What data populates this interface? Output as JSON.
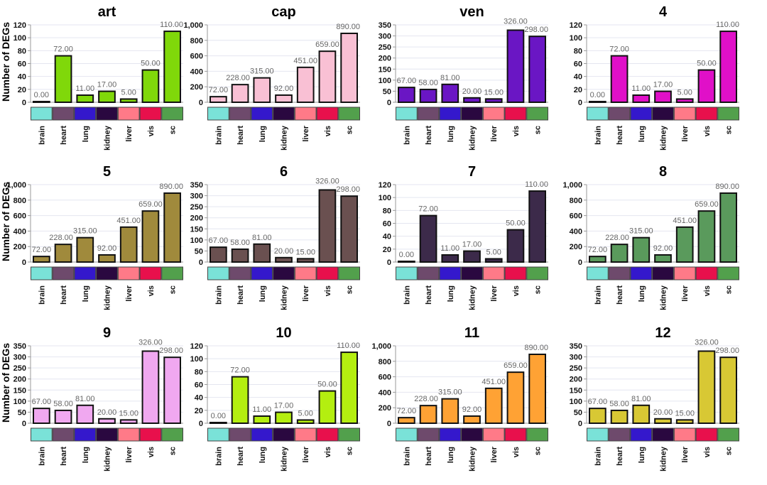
{
  "chart_data": {
    "type": "bar",
    "ylabel": "Number of DEGs",
    "categories": [
      "brain",
      "heart",
      "lung",
      "kidney",
      "liver",
      "vis",
      "sc"
    ],
    "category_colors": [
      "#7ae2d8",
      "#6e4a6c",
      "#3418cc",
      "#2a0840",
      "#ff7a88",
      "#e8104c",
      "#52a04c"
    ],
    "grid": true,
    "panels": [
      {
        "title": "art",
        "color": "#80d80a",
        "values": [
          0,
          72,
          11,
          17,
          5,
          50,
          110
        ],
        "ylim": [
          0,
          120
        ],
        "yticks": [
          "0",
          "20",
          "40",
          "60",
          "80",
          "100",
          "120"
        ],
        "tick_values": [
          0,
          20,
          40,
          60,
          80,
          100,
          120
        ],
        "value_labels": [
          "0.00",
          "72.00",
          "11.00",
          "17.00",
          "5.00",
          "50.00",
          "110.00"
        ]
      },
      {
        "title": "cap",
        "color": "#f9c0d4",
        "values": [
          72,
          228,
          315,
          92,
          451,
          659,
          890
        ],
        "ylim": [
          0,
          1000
        ],
        "yticks": [
          "0",
          "200",
          "400",
          "600",
          "800",
          "1,000"
        ],
        "tick_values": [
          0,
          200,
          400,
          600,
          800,
          1000
        ],
        "value_labels": [
          "72.00",
          "228.00",
          "315.00",
          "92.00",
          "451.00",
          "659.00",
          "890.00"
        ]
      },
      {
        "title": "ven",
        "color": "#6a16c4",
        "values": [
          67,
          58,
          81,
          20,
          15,
          326,
          298
        ],
        "ylim": [
          0,
          350
        ],
        "yticks": [
          "0",
          "50",
          "100",
          "150",
          "200",
          "250",
          "300",
          "350"
        ],
        "tick_values": [
          0,
          50,
          100,
          150,
          200,
          250,
          300,
          350
        ],
        "value_labels": [
          "67.00",
          "58.00",
          "81.00",
          "20.00",
          "15.00",
          "326.00",
          "298.00"
        ]
      },
      {
        "title": "4",
        "color": "#e010c8",
        "values": [
          0,
          72,
          11,
          17,
          5,
          50,
          110
        ],
        "ylim": [
          0,
          120
        ],
        "yticks": [
          "0",
          "20",
          "40",
          "60",
          "80",
          "100",
          "120"
        ],
        "tick_values": [
          0,
          20,
          40,
          60,
          80,
          100,
          120
        ],
        "value_labels": [
          "0.00",
          "72.00",
          "11.00",
          "17.00",
          "5.00",
          "50.00",
          "110.00"
        ]
      },
      {
        "title": "5",
        "color": "#a08a3c",
        "values": [
          72,
          228,
          315,
          92,
          451,
          659,
          890
        ],
        "ylim": [
          0,
          1000
        ],
        "yticks": [
          "0",
          "200",
          "400",
          "600",
          "800",
          "1,000"
        ],
        "tick_values": [
          0,
          200,
          400,
          600,
          800,
          1000
        ],
        "value_labels": [
          "72.00",
          "228.00",
          "315.00",
          "92.00",
          "451.00",
          "659.00",
          "890.00"
        ]
      },
      {
        "title": "6",
        "color": "#6a5050",
        "values": [
          67,
          58,
          81,
          20,
          15,
          326,
          298
        ],
        "ylim": [
          0,
          350
        ],
        "yticks": [
          "0",
          "50",
          "100",
          "150",
          "200",
          "250",
          "300",
          "350"
        ],
        "tick_values": [
          0,
          50,
          100,
          150,
          200,
          250,
          300,
          350
        ],
        "value_labels": [
          "67.00",
          "58.00",
          "81.00",
          "20.00",
          "15.00",
          "326.00",
          "298.00"
        ]
      },
      {
        "title": "7",
        "color": "#3c2a4a",
        "values": [
          0,
          72,
          11,
          17,
          5,
          50,
          110
        ],
        "ylim": [
          0,
          120
        ],
        "yticks": [
          "0",
          "20",
          "40",
          "60",
          "80",
          "100",
          "120"
        ],
        "tick_values": [
          0,
          20,
          40,
          60,
          80,
          100,
          120
        ],
        "value_labels": [
          "0.00",
          "72.00",
          "11.00",
          "17.00",
          "5.00",
          "50.00",
          "110.00"
        ]
      },
      {
        "title": "8",
        "color": "#5a9a5c",
        "values": [
          72,
          228,
          315,
          92,
          451,
          659,
          890
        ],
        "ylim": [
          0,
          1000
        ],
        "yticks": [
          "0",
          "200",
          "400",
          "600",
          "800",
          "1,000"
        ],
        "tick_values": [
          0,
          200,
          400,
          600,
          800,
          1000
        ],
        "value_labels": [
          "72.00",
          "228.00",
          "315.00",
          "92.00",
          "451.00",
          "659.00",
          "890.00"
        ]
      },
      {
        "title": "9",
        "color": "#f0a8f0",
        "values": [
          67,
          58,
          81,
          20,
          15,
          326,
          298
        ],
        "ylim": [
          0,
          350
        ],
        "yticks": [
          "0",
          "50",
          "100",
          "150",
          "200",
          "250",
          "300",
          "350"
        ],
        "tick_values": [
          0,
          50,
          100,
          150,
          200,
          250,
          300,
          350
        ],
        "value_labels": [
          "67.00",
          "58.00",
          "81.00",
          "20.00",
          "15.00",
          "326.00",
          "298.00"
        ]
      },
      {
        "title": "10",
        "color": "#b4ee10",
        "values": [
          0,
          72,
          11,
          17,
          5,
          50,
          110
        ],
        "ylim": [
          0,
          120
        ],
        "yticks": [
          "0",
          "20",
          "40",
          "60",
          "80",
          "100",
          "120"
        ],
        "tick_values": [
          0,
          20,
          40,
          60,
          80,
          100,
          120
        ],
        "value_labels": [
          "0.00",
          "72.00",
          "11.00",
          "17.00",
          "5.00",
          "50.00",
          "110.00"
        ]
      },
      {
        "title": "11",
        "color": "#ffa234",
        "values": [
          72,
          228,
          315,
          92,
          451,
          659,
          890
        ],
        "ylim": [
          0,
          1000
        ],
        "yticks": [
          "0",
          "200",
          "400",
          "600",
          "800",
          "1,000"
        ],
        "tick_values": [
          0,
          200,
          400,
          600,
          800,
          1000
        ],
        "value_labels": [
          "72.00",
          "228.00",
          "315.00",
          "92.00",
          "451.00",
          "659.00",
          "890.00"
        ]
      },
      {
        "title": "12",
        "color": "#d8c834",
        "values": [
          67,
          58,
          81,
          20,
          15,
          326,
          298
        ],
        "ylim": [
          0,
          350
        ],
        "yticks": [
          "0",
          "50",
          "100",
          "150",
          "200",
          "250",
          "300",
          "350"
        ],
        "tick_values": [
          0,
          50,
          100,
          150,
          200,
          250,
          300,
          350
        ],
        "value_labels": [
          "67.00",
          "58.00",
          "81.00",
          "20.00",
          "15.00",
          "326.00",
          "298.00"
        ]
      }
    ]
  }
}
